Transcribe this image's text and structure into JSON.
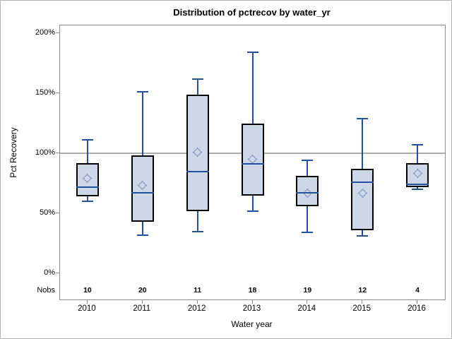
{
  "title": "Distribution of pctrecov by water_yr",
  "colors": {
    "box_fill": "#cdd7e7",
    "box_border": "#000000",
    "whisker": "#24509b",
    "median": "#24509b",
    "mean_marker": "#24509b",
    "refline": "#ababab",
    "axis": "#8c8c8c",
    "text": "#000000"
  },
  "chart_data": {
    "type": "boxplot",
    "title": "Distribution of pctrecov by water_yr",
    "xlabel": "Water year",
    "ylabel": "Pct Recovery",
    "nobs_label": "Nobs",
    "categories": [
      "2010",
      "2011",
      "2012",
      "2013",
      "2014",
      "2015",
      "2016"
    ],
    "nobs": [
      10,
      20,
      11,
      18,
      19,
      12,
      4
    ],
    "y_axis": {
      "unit": "percent",
      "ticks": [
        {
          "label": "0%",
          "value": 0
        },
        {
          "label": "50%",
          "value": 50
        },
        {
          "label": "100%",
          "value": 100
        },
        {
          "label": "150%",
          "value": 150
        },
        {
          "label": "200%",
          "value": 200
        }
      ],
      "range_shown": [
        -22,
        206
      ]
    },
    "refline_value": 100,
    "legend": "none",
    "grid": "off",
    "series": [
      {
        "category": "2010",
        "nobs": 10,
        "min": 60,
        "q1": 64,
        "median": 72,
        "mean": 79,
        "q3": 92,
        "max": 111
      },
      {
        "category": "2011",
        "nobs": 20,
        "min": 32,
        "q1": 43,
        "median": 67,
        "mean": 73,
        "q3": 98,
        "max": 151
      },
      {
        "category": "2012",
        "nobs": 11,
        "min": 35,
        "q1": 52,
        "median": 85,
        "mean": 101,
        "q3": 149,
        "max": 162
      },
      {
        "category": "2013",
        "nobs": 18,
        "min": 52,
        "q1": 65,
        "median": 91,
        "mean": 95,
        "q3": 125,
        "max": 184
      },
      {
        "category": "2014",
        "nobs": 19,
        "min": 34,
        "q1": 56,
        "median": 67,
        "mean": 67,
        "q3": 81,
        "max": 94
      },
      {
        "category": "2015",
        "nobs": 12,
        "min": 31,
        "q1": 36,
        "median": 76,
        "mean": 67,
        "q3": 87,
        "max": 129
      },
      {
        "category": "2016",
        "nobs": 4,
        "min": 70,
        "q1": 72,
        "median": 74,
        "mean": 83,
        "q3": 92,
        "max": 107
      }
    ]
  }
}
